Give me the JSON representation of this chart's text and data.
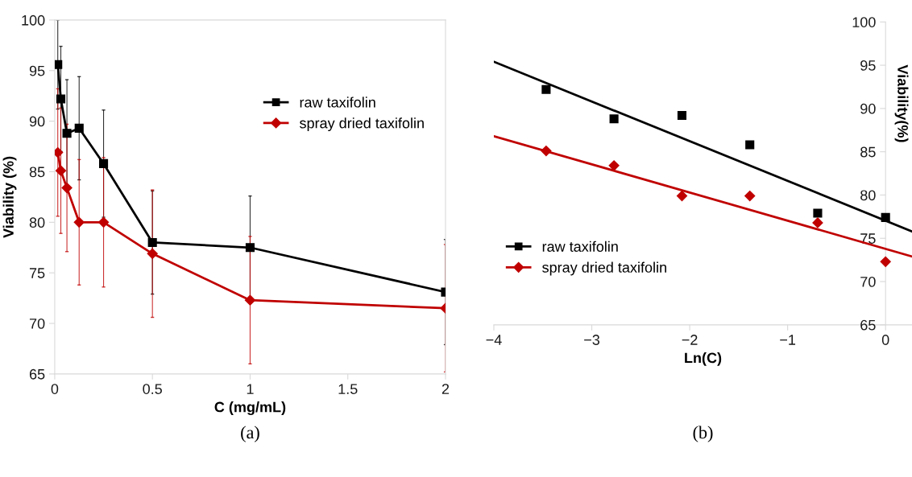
{
  "chart_data": [
    {
      "type": "line",
      "xlabel": "C (mg/mL)",
      "ylabel": "Viability (%)",
      "x": [
        0.015625,
        0.03125,
        0.0625,
        0.125,
        0.25,
        0.5,
        1,
        2
      ],
      "xlim": [
        0,
        2
      ],
      "xticks": [
        0,
        0.5,
        1,
        1.5,
        2
      ],
      "ylim": [
        65,
        100
      ],
      "yticks": [
        65,
        70,
        75,
        80,
        85,
        90,
        95,
        100
      ],
      "legend": "top right",
      "grid": false,
      "annotations": [
        "(a)"
      ],
      "series": [
        {
          "name": "raw taxifolin",
          "color": "#000000",
          "marker": "square",
          "values": [
            95.6,
            92.2,
            88.8,
            89.3,
            85.8,
            78.0,
            77.5,
            73.1
          ],
          "errors": [
            4.4,
            5.2,
            5.3,
            5.1,
            5.3,
            5.1,
            5.1,
            5.2
          ]
        },
        {
          "name": "spray dried taxifolin",
          "color": "#c00000",
          "marker": "diamond",
          "values": [
            86.9,
            85.1,
            83.4,
            80.0,
            80.0,
            76.9,
            72.3,
            71.5
          ],
          "errors": [
            6.3,
            6.2,
            6.3,
            6.2,
            6.4,
            6.3,
            6.3,
            6.3
          ]
        }
      ]
    },
    {
      "type": "scatter",
      "xlabel": "Ln(C)",
      "y2label": "Viability(%)",
      "xlim": [
        -4,
        0.27
      ],
      "xticks": [
        {
          "value": -4,
          "label": "−4"
        },
        {
          "value": -3,
          "label": "−3"
        },
        {
          "value": -2,
          "label": "−2"
        },
        {
          "value": -1,
          "label": "−1"
        },
        0
      ],
      "y2lim": [
        65,
        100
      ],
      "y2ticks": [
        65,
        70,
        75,
        80,
        85,
        90,
        95,
        100
      ],
      "legend": "bottom left",
      "grid": false,
      "annotations": [
        "(b)"
      ],
      "series": [
        {
          "name": "raw taxifolin",
          "color": "#000000",
          "marker": "square",
          "axis": "y2",
          "x": [
            -3.466,
            -2.773,
            -2.079,
            -1.386,
            -0.693,
            0
          ],
          "values": [
            92.2,
            88.8,
            89.2,
            85.8,
            77.9,
            77.4
          ]
        },
        {
          "name": "spray dried taxifolin",
          "color": "#c00000",
          "marker": "diamond",
          "axis": "y2",
          "x": [
            -3.466,
            -2.773,
            -2.079,
            -1.386,
            -0.693,
            0
          ],
          "values": [
            85.1,
            83.4,
            79.9,
            79.9,
            76.8,
            72.3
          ]
        },
        {
          "type": "line",
          "color": "#000000",
          "axis": "y2",
          "x": [
            -4,
            0.27
          ],
          "values": [
            95.4,
            75.8
          ]
        },
        {
          "type": "line",
          "color": "#c00000",
          "axis": "y2",
          "x": [
            -4,
            0.27
          ],
          "values": [
            86.8,
            72.9
          ]
        }
      ]
    }
  ]
}
